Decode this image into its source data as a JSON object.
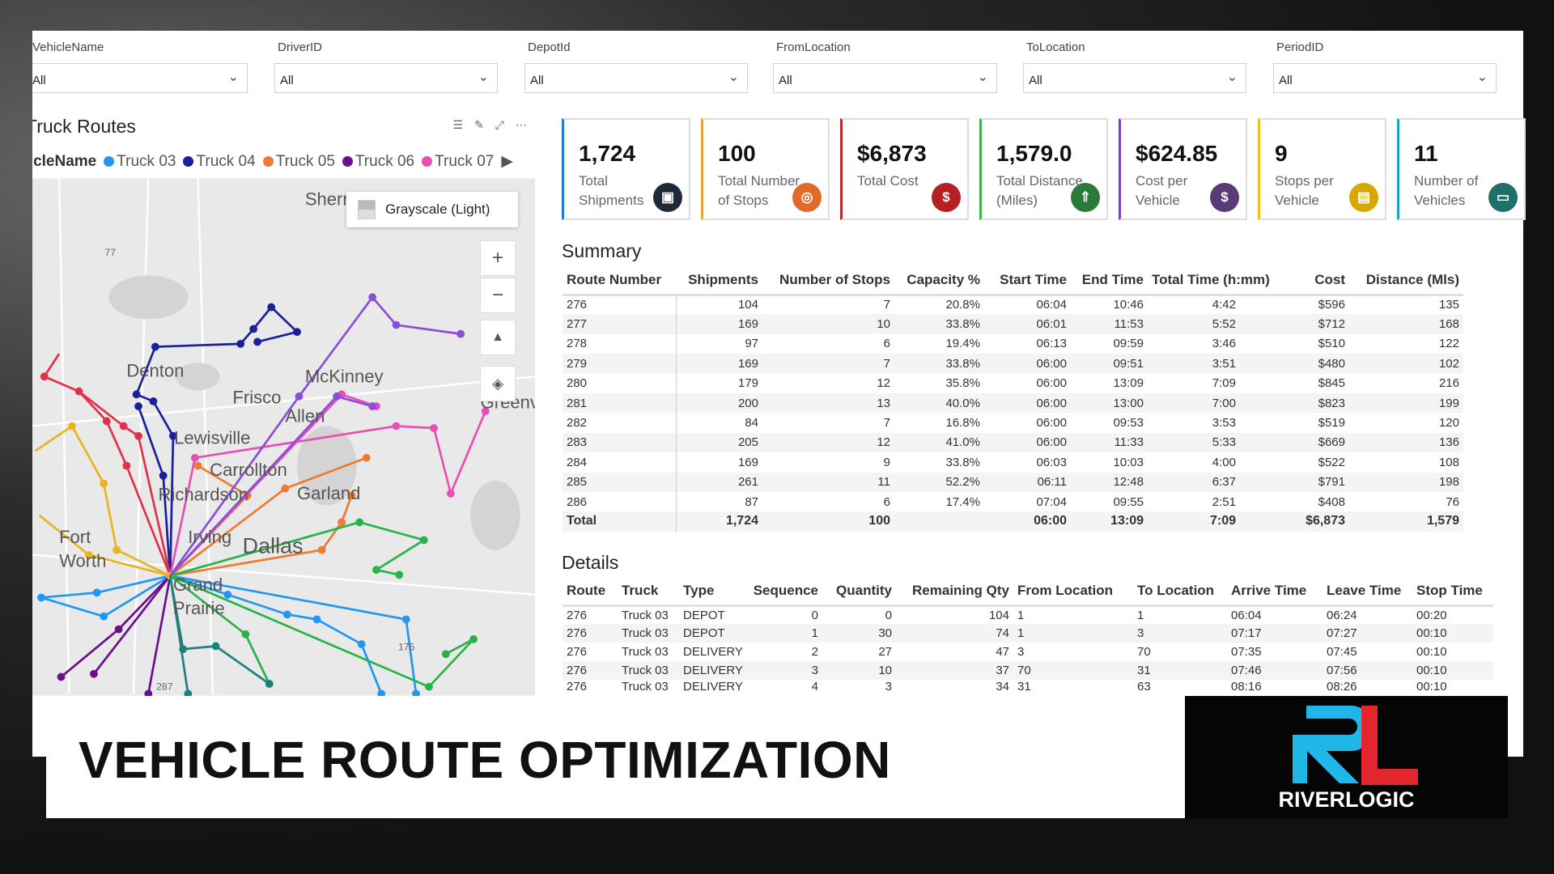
{
  "filters": [
    {
      "label": "VehicleName",
      "value": "All"
    },
    {
      "label": "DriverID",
      "value": "All"
    },
    {
      "label": "DepotId",
      "value": "All"
    },
    {
      "label": "FromLocation",
      "value": "All"
    },
    {
      "label": "ToLocation",
      "value": "All"
    },
    {
      "label": "PeriodID",
      "value": "All"
    }
  ],
  "map": {
    "title": "Truck Routes",
    "legend_title": "VehicleName",
    "legend": [
      {
        "name": "Truck 03",
        "color": "#2196f3"
      },
      {
        "name": "Truck 04",
        "color": "#1a1f9c"
      },
      {
        "name": "Truck 05",
        "color": "#f07a30"
      },
      {
        "name": "Truck 06",
        "color": "#6a0f8e"
      },
      {
        "name": "Truck 07",
        "color": "#e84fb4"
      }
    ],
    "style_label": "Grayscale (Light)",
    "places": [
      "Sherm",
      "Denton",
      "Frisco",
      "McKinney",
      "Allen",
      "Lewisville",
      "Carrollton",
      "Garland",
      "Richardson",
      "Irving",
      "Dallas",
      "Fort",
      "Worth",
      "Grand",
      "Prairie",
      "Greenvi",
      "77",
      "175",
      "287"
    ]
  },
  "kpis": [
    {
      "value": "1,724",
      "label": "Total Shipments",
      "color": "#1f7bd8",
      "icon": "package-icon",
      "icon_color": "#1e2a3a"
    },
    {
      "value": "100",
      "label": "Total Number of Stops",
      "color": "#e8a33a",
      "icon": "location-pin-icon",
      "icon_color": "#e06a2a"
    },
    {
      "value": "$6,873",
      "label": "Total Cost",
      "color": "#c0262c",
      "icon": "dollar-icon",
      "icon_color": "#b52025"
    },
    {
      "value": "1,579.0",
      "label": "Total Distance (Miles)",
      "color": "#3bb54a",
      "icon": "road-icon",
      "icon_color": "#2a7a3a"
    },
    {
      "value": "$624.85",
      "label": "Cost per Vehicle",
      "color": "#7a3fc8",
      "icon": "money-bag-icon",
      "icon_color": "#5a3a78"
    },
    {
      "value": "9",
      "label": "Stops per Vehicle",
      "color": "#f2c018",
      "icon": "truck-stops-icon",
      "icon_color": "#d9a800"
    },
    {
      "value": "11",
      "label": "Number of Vehicles",
      "color": "#1aa3c4",
      "icon": "truck-icon",
      "icon_color": "#1f6f6a"
    }
  ],
  "summary": {
    "title": "Summary",
    "columns": [
      "Route Number",
      "Shipments",
      "Number of Stops",
      "Capacity %",
      "Start Time",
      "End Time",
      "Total Time (h:mm)",
      "Cost",
      "Distance (Mls)"
    ],
    "rows": [
      [
        "276",
        "104",
        "7",
        "20.8%",
        "06:04",
        "10:46",
        "4:42",
        "$596",
        "135"
      ],
      [
        "277",
        "169",
        "10",
        "33.8%",
        "06:01",
        "11:53",
        "5:52",
        "$712",
        "168"
      ],
      [
        "278",
        "97",
        "6",
        "19.4%",
        "06:13",
        "09:59",
        "3:46",
        "$510",
        "122"
      ],
      [
        "279",
        "169",
        "7",
        "33.8%",
        "06:00",
        "09:51",
        "3:51",
        "$480",
        "102"
      ],
      [
        "280",
        "179",
        "12",
        "35.8%",
        "06:00",
        "13:09",
        "7:09",
        "$845",
        "216"
      ],
      [
        "281",
        "200",
        "13",
        "40.0%",
        "06:00",
        "13:00",
        "7:00",
        "$823",
        "199"
      ],
      [
        "282",
        "84",
        "7",
        "16.8%",
        "06:00",
        "09:53",
        "3:53",
        "$519",
        "120"
      ],
      [
        "283",
        "205",
        "12",
        "41.0%",
        "06:00",
        "11:33",
        "5:33",
        "$669",
        "136"
      ],
      [
        "284",
        "169",
        "9",
        "33.8%",
        "06:03",
        "10:03",
        "4:00",
        "$522",
        "108"
      ],
      [
        "285",
        "261",
        "11",
        "52.2%",
        "06:11",
        "12:48",
        "6:37",
        "$791",
        "198"
      ],
      [
        "286",
        "87",
        "6",
        "17.4%",
        "07:04",
        "09:55",
        "2:51",
        "$408",
        "76"
      ]
    ],
    "total": [
      "Total",
      "1,724",
      "100",
      "",
      "06:00",
      "13:09",
      "7:09",
      "$6,873",
      "1,579"
    ]
  },
  "details": {
    "title": "Details",
    "columns": [
      "Route",
      "Truck",
      "Type",
      "Sequence",
      "Quantity",
      "Remaining Qty",
      "From Location",
      "To Location",
      "Arrive Time",
      "Leave Time",
      "Stop Time"
    ],
    "rows": [
      [
        "276",
        "Truck 03",
        "DEPOT",
        "0",
        "0",
        "104",
        "1",
        "1",
        "06:04",
        "06:24",
        "00:20"
      ],
      [
        "276",
        "Truck 03",
        "DEPOT",
        "1",
        "30",
        "74",
        "1",
        "3",
        "07:17",
        "07:27",
        "00:10"
      ],
      [
        "276",
        "Truck 03",
        "DELIVERY",
        "2",
        "27",
        "47",
        "3",
        "70",
        "07:35",
        "07:45",
        "00:10"
      ],
      [
        "276",
        "Truck 03",
        "DELIVERY",
        "3",
        "10",
        "37",
        "70",
        "31",
        "07:46",
        "07:56",
        "00:10"
      ],
      [
        "276",
        "Truck 03",
        "DELIVERY",
        "4",
        "3",
        "34",
        "31",
        "63",
        "08:16",
        "08:26",
        "00:10"
      ]
    ]
  },
  "banner": {
    "title": "VEHICLE ROUTE OPTIMIZATION",
    "logo_text": "RIVERLOGIC",
    "logo_letters": "RL"
  }
}
